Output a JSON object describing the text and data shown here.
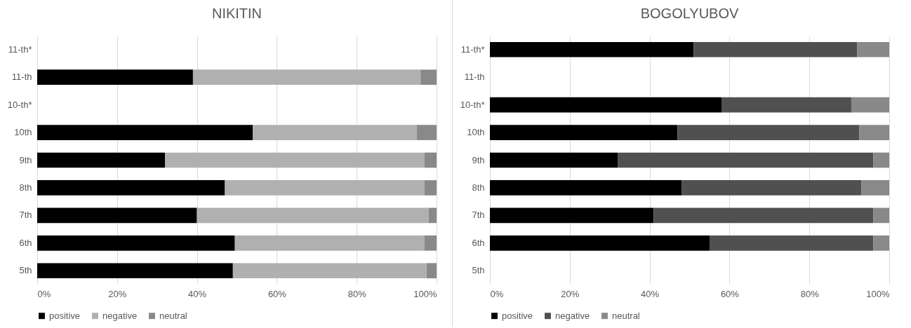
{
  "chart_data": [
    {
      "type": "bar",
      "orientation": "horizontal",
      "stacked": true,
      "title": "NIKITIN",
      "categories": [
        "11-th*",
        "11-th",
        "10-th*",
        "10th",
        "9th",
        "8th",
        "7th",
        "6th",
        "5th"
      ],
      "xlim": [
        0,
        100
      ],
      "xticks": [
        {
          "value": 0,
          "label": "0%"
        },
        {
          "value": 20,
          "label": "20%"
        },
        {
          "value": 40,
          "label": "40%"
        },
        {
          "value": 60,
          "label": "60%"
        },
        {
          "value": 80,
          "label": "80%"
        },
        {
          "value": 100,
          "label": "100%"
        }
      ],
      "grid": "x",
      "legend": "bottom",
      "series": [
        {
          "name": "positive",
          "color": "#000000",
          "values": [
            null,
            39,
            null,
            54,
            32,
            47,
            40,
            49.5,
            49
          ]
        },
        {
          "name": "negative",
          "color": "#b0b0b0",
          "values": [
            null,
            57,
            null,
            41,
            65,
            50,
            58,
            47.5,
            48.5
          ]
        },
        {
          "name": "neutral",
          "color": "#898989",
          "values": [
            null,
            4,
            null,
            5,
            3,
            3,
            2,
            3,
            2.5
          ]
        }
      ]
    },
    {
      "type": "bar",
      "orientation": "horizontal",
      "stacked": true,
      "title": "BOGOLYUBOV",
      "categories": [
        "11-th*",
        "11-th",
        "10-th*",
        "10th",
        "9th",
        "8th",
        "7th",
        "6th",
        "5th"
      ],
      "xlim": [
        0,
        100
      ],
      "xticks": [
        {
          "value": 0,
          "label": "0%"
        },
        {
          "value": 20,
          "label": "20%"
        },
        {
          "value": 40,
          "label": "40%"
        },
        {
          "value": 60,
          "label": "60%"
        },
        {
          "value": 80,
          "label": "80%"
        },
        {
          "value": 100,
          "label": "100%"
        }
      ],
      "grid": "x",
      "legend": "bottom",
      "series": [
        {
          "name": "positive",
          "color": "#000000",
          "values": [
            51,
            null,
            58,
            47,
            32,
            48,
            41,
            55,
            null
          ]
        },
        {
          "name": "negative",
          "color": "#505050",
          "values": [
            41,
            null,
            32.5,
            45.5,
            64,
            45,
            55,
            41,
            null
          ]
        },
        {
          "name": "neutral",
          "color": "#898989",
          "values": [
            8,
            null,
            9.5,
            7.5,
            4,
            7,
            4,
            4,
            null
          ]
        }
      ]
    }
  ]
}
